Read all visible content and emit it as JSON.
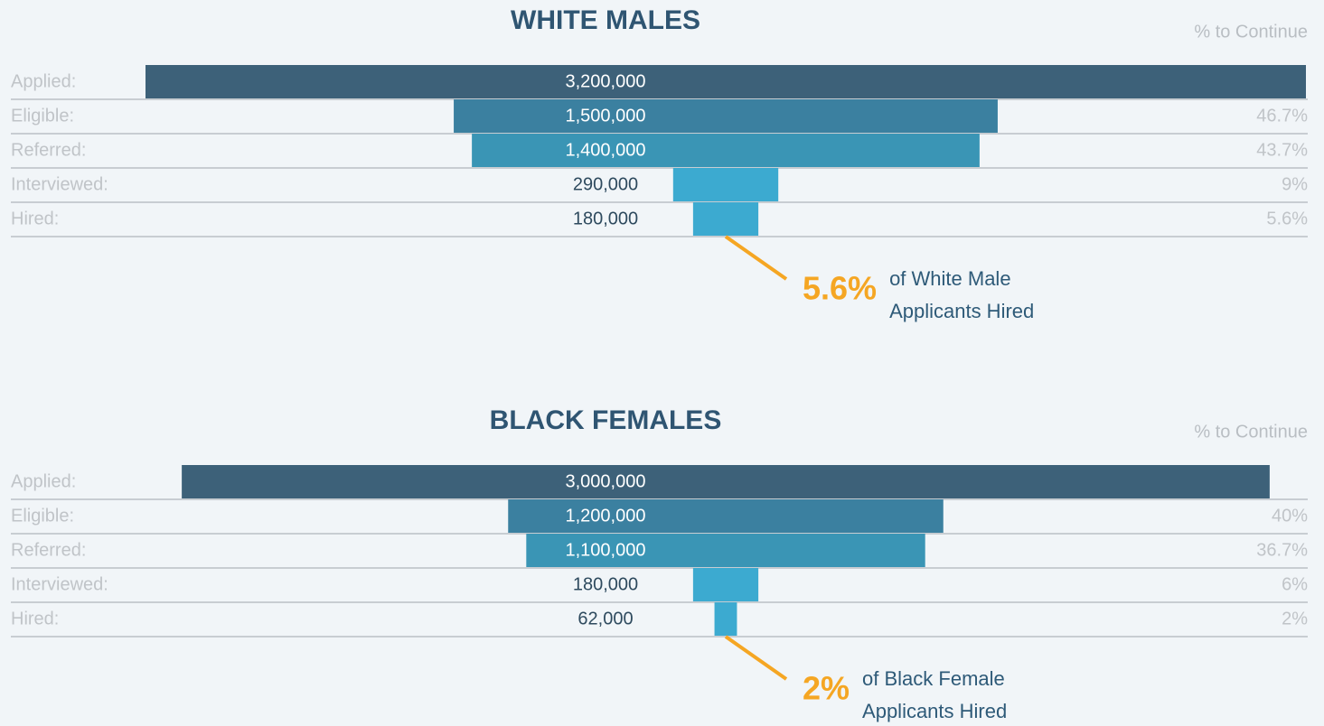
{
  "chart_data": [
    {
      "type": "funnel",
      "title": "WHITE MALES",
      "percent_header": "% to Continue",
      "categories": [
        "Applied:",
        "Eligible:",
        "Referred:",
        "Interviewed:",
        "Hired:"
      ],
      "values": [
        3200000,
        1500000,
        1400000,
        290000,
        180000
      ],
      "value_labels": [
        "3,200,000",
        "1,500,000",
        "1,400,000",
        "290,000",
        "180,000"
      ],
      "percents": [
        null,
        46.7,
        43.7,
        9,
        5.6
      ],
      "percent_labels": [
        null,
        "46.7%",
        "43.7%",
        "9%",
        "5.6%"
      ],
      "colors": [
        "#3d6179",
        "#3b80a0",
        "#3a95b5",
        "#3caad0",
        "#3caad0"
      ],
      "xlim": [
        0,
        3200000
      ],
      "annotation": {
        "label": "5.6%",
        "lines": [
          "of White Male",
          "Applicants Hired"
        ],
        "color": "#f5a623"
      }
    },
    {
      "type": "funnel",
      "title": "BLACK FEMALES",
      "percent_header": "% to Continue",
      "categories": [
        "Applied:",
        "Eligible:",
        "Referred:",
        "Interviewed:",
        "Hired:"
      ],
      "values": [
        3000000,
        1200000,
        1100000,
        180000,
        62000
      ],
      "value_labels": [
        "3,000,000",
        "1,200,000",
        "1,100,000",
        "180,000",
        "62,000"
      ],
      "percents": [
        null,
        40,
        36.7,
        6,
        2
      ],
      "percent_labels": [
        null,
        "40%",
        "36.7%",
        "6%",
        "2%"
      ],
      "colors": [
        "#3d6179",
        "#3b80a0",
        "#3a95b5",
        "#3caad0",
        "#3caad0"
      ],
      "xlim": [
        0,
        3200000
      ],
      "annotation": {
        "label": "2%",
        "lines": [
          "of Black Female",
          "Applicants Hired"
        ],
        "color": "#f5a623"
      }
    }
  ]
}
